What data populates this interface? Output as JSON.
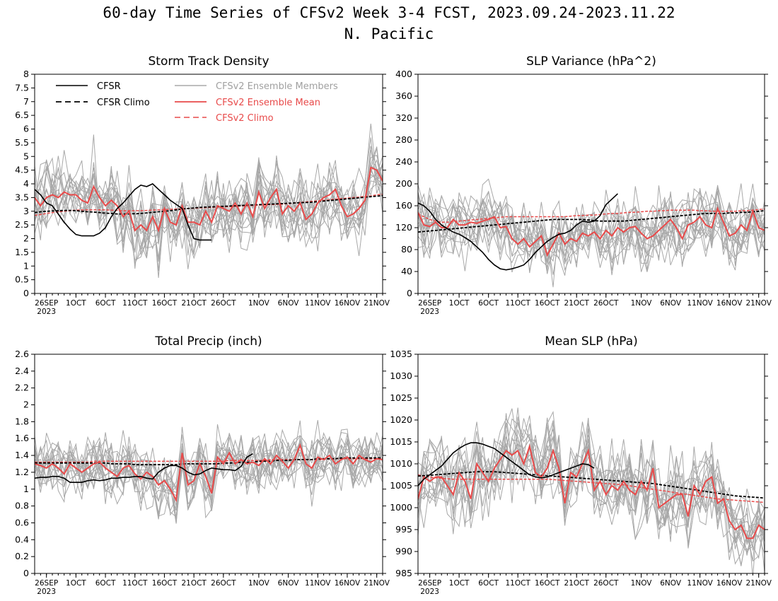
{
  "figure": {
    "title": "60-day Time Series of CFSv2 Week 3-4 FCST, 2023.09.24-2023.11.22",
    "region": "N. Pacific"
  },
  "legend_labels": {
    "cfsr": "CFSR",
    "cfsr_climo": "CFSR Climo",
    "members": "CFSv2 Ensemble Members",
    "ens_mean": "CFSv2 Ensemble Mean",
    "cfsv2_climo": "CFSv2 Climo"
  },
  "colors": {
    "cfsr": "#000000",
    "members": "#a8a8a8",
    "ens_mean": "#e84a4a",
    "cfsv2_climo": "#e84a4a",
    "legend_members_text": "#a0a0a0"
  },
  "x_axis": {
    "ticks": [
      {
        "day": 2,
        "label": "26SEP"
      },
      {
        "day": 7,
        "label": "1OCT"
      },
      {
        "day": 12,
        "label": "6OCT"
      },
      {
        "day": 17,
        "label": "11OCT"
      },
      {
        "day": 22,
        "label": "16OCT"
      },
      {
        "day": 27,
        "label": "21OCT"
      },
      {
        "day": 32,
        "label": "26OCT"
      },
      {
        "day": 38,
        "label": "1NOV"
      },
      {
        "day": 43,
        "label": "6NOV"
      },
      {
        "day": 48,
        "label": "11NOV"
      },
      {
        "day": 53,
        "label": "16NOV"
      },
      {
        "day": 58,
        "label": "21NOV"
      }
    ],
    "year_label": "2023",
    "start_date": "2023.09.24",
    "end_date": "2023.11.22"
  },
  "chart_data": [
    {
      "type": "line",
      "title": "Storm Track Density",
      "ylim": [
        0,
        8
      ],
      "yticks": [
        "0",
        "0.5",
        "1",
        "1.5",
        "2",
        "2.5",
        "3",
        "3.5",
        "4",
        "4.5",
        "5",
        "5.5",
        "6",
        "6.5",
        "7",
        "7.5",
        "8"
      ],
      "show_legend": true,
      "series": {
        "cfsr": [
          3.8,
          3.6,
          3.3,
          3.2,
          2.9,
          2.6,
          2.35,
          2.15,
          2.1,
          2.1,
          2.1,
          2.2,
          2.4,
          2.8,
          3.1,
          3.3,
          3.55,
          3.8,
          3.95,
          3.9,
          4.0,
          3.8,
          3.6,
          3.4,
          3.25,
          3.1,
          2.5,
          2.0,
          1.95,
          1.95,
          1.95
        ],
        "cfsr_climo": [
          2.95,
          2.98,
          3.0,
          3.01,
          3.02,
          3.03,
          3.03,
          3.02,
          3.0,
          2.98,
          2.97,
          2.95,
          2.93,
          2.92,
          2.9,
          2.9,
          2.9,
          2.91,
          2.92,
          2.94,
          2.96,
          2.98,
          3.0,
          3.02,
          3.05,
          3.08,
          3.1,
          3.12,
          3.14,
          3.15,
          3.16,
          3.17,
          3.18,
          3.19,
          3.2,
          3.21,
          3.22,
          3.23,
          3.24,
          3.25,
          3.26,
          3.27,
          3.28,
          3.29,
          3.3,
          3.31,
          3.32,
          3.33,
          3.35,
          3.37,
          3.39,
          3.41,
          3.43,
          3.45,
          3.47,
          3.49,
          3.51,
          3.53,
          3.55,
          3.57
        ],
        "ens_mean": [
          3.5,
          3.2,
          3.5,
          3.6,
          3.5,
          3.7,
          3.6,
          3.6,
          3.4,
          3.3,
          3.9,
          3.5,
          3.2,
          3.4,
          3.2,
          2.8,
          3.0,
          2.3,
          2.5,
          2.3,
          2.8,
          2.3,
          3.1,
          2.6,
          2.5,
          3.2,
          2.6,
          2.6,
          2.5,
          3.0,
          2.6,
          3.2,
          3.1,
          3.0,
          3.3,
          2.9,
          3.3,
          2.8,
          3.7,
          3.1,
          3.5,
          3.8,
          2.9,
          3.2,
          3.0,
          3.3,
          2.7,
          2.9,
          3.3,
          3.5,
          3.6,
          3.8,
          3.2,
          2.8,
          2.9,
          3.1,
          3.4,
          4.6,
          4.5,
          4.1
        ],
        "cfsv2_climo": [
          2.85,
          2.88,
          2.92,
          2.95,
          2.98,
          3.0,
          3.02,
          3.04,
          3.05,
          3.05,
          3.05,
          3.05,
          3.05,
          3.04,
          3.03,
          3.02,
          3.02,
          3.02,
          3.02,
          3.03,
          3.04,
          3.05,
          3.06,
          3.07,
          3.08,
          3.09,
          3.1,
          3.11,
          3.12,
          3.13,
          3.14,
          3.15,
          3.16,
          3.17,
          3.18,
          3.19,
          3.2,
          3.21,
          3.22,
          3.23,
          3.24,
          3.25,
          3.26,
          3.28,
          3.3,
          3.32,
          3.34,
          3.36,
          3.38,
          3.4,
          3.42,
          3.44,
          3.46,
          3.48,
          3.5,
          3.52,
          3.54,
          3.56,
          3.6,
          3.62
        ]
      },
      "member_spread": 0.65,
      "members_count": 16
    },
    {
      "type": "line",
      "title": "SLP Variance (hPa^2)",
      "ylim": [
        0,
        400
      ],
      "yticks": [
        "0",
        "40",
        "80",
        "120",
        "160",
        "200",
        "240",
        "280",
        "320",
        "360",
        "400"
      ],
      "show_legend": false,
      "series": {
        "cfsr": [
          165,
          160,
          150,
          135,
          125,
          118,
          112,
          108,
          102,
          95,
          85,
          75,
          62,
          52,
          45,
          43,
          45,
          48,
          52,
          62,
          75,
          85,
          95,
          102,
          108,
          110,
          115,
          125,
          132,
          130,
          132,
          142,
          162,
          172,
          182
        ],
        "cfsr_climo": [
          112,
          113,
          114,
          115,
          116,
          117,
          118,
          119,
          120,
          121,
          122,
          123,
          124,
          125,
          126,
          127,
          128,
          129,
          130,
          131,
          132,
          133,
          134,
          135,
          135,
          135,
          135,
          135,
          135,
          134,
          133,
          132,
          132,
          132,
          132,
          132,
          133,
          134,
          135,
          136,
          137,
          138,
          139,
          140,
          141,
          142,
          143,
          144,
          145,
          146,
          146,
          146,
          146,
          147,
          147,
          148,
          148,
          149,
          150,
          151
        ],
        "ens_mean": [
          148,
          125,
          122,
          130,
          120,
          120,
          135,
          125,
          125,
          130,
          128,
          132,
          135,
          140,
          120,
          122,
          100,
          90,
          100,
          85,
          95,
          105,
          70,
          90,
          110,
          90,
          100,
          95,
          110,
          105,
          112,
          100,
          115,
          105,
          120,
          112,
          120,
          122,
          110,
          100,
          105,
          115,
          125,
          135,
          120,
          100,
          125,
          130,
          140,
          125,
          120,
          155,
          130,
          105,
          110,
          125,
          115,
          150,
          120,
          115
        ],
        "cfsv2_climo": [
          145,
          140,
          135,
          132,
          130,
          130,
          131,
          132,
          133,
          134,
          135,
          136,
          137,
          138,
          139,
          140,
          140,
          140,
          140,
          140,
          140,
          140,
          140,
          140,
          140,
          140,
          141,
          142,
          142,
          143,
          143,
          144,
          145,
          146,
          146,
          147,
          148,
          148,
          149,
          150,
          150,
          151,
          151,
          152,
          152,
          152,
          152,
          152,
          151,
          151,
          150,
          150,
          150,
          150,
          150,
          151,
          151,
          152,
          153,
          154
        ],
        "cfsv2_climo_note": ""
      },
      "member_spread": 30,
      "members_count": 16
    },
    {
      "type": "line",
      "title": "Total Precip (inch)",
      "ylim": [
        0,
        2.6
      ],
      "yticks": [
        "0",
        "0.2",
        "0.4",
        "0.6",
        "0.8",
        "1",
        "1.2",
        "1.4",
        "1.6",
        "1.8",
        "2",
        "2.2",
        "2.4",
        "2.6"
      ],
      "show_legend": false,
      "series": {
        "cfsr": [
          1.13,
          1.14,
          1.14,
          1.15,
          1.15,
          1.13,
          1.08,
          1.08,
          1.08,
          1.1,
          1.11,
          1.1,
          1.11,
          1.13,
          1.13,
          1.14,
          1.14,
          1.15,
          1.15,
          1.13,
          1.12,
          1.2,
          1.25,
          1.28,
          1.28,
          1.25,
          1.2,
          1.17,
          1.18,
          1.22,
          1.25,
          1.24,
          1.23,
          1.23,
          1.22,
          1.27,
          1.38,
          1.42
        ],
        "cfsr_climo": [
          1.31,
          1.31,
          1.31,
          1.31,
          1.31,
          1.31,
          1.31,
          1.31,
          1.31,
          1.31,
          1.31,
          1.31,
          1.31,
          1.3,
          1.3,
          1.3,
          1.3,
          1.29,
          1.29,
          1.29,
          1.29,
          1.29,
          1.29,
          1.29,
          1.29,
          1.3,
          1.3,
          1.3,
          1.3,
          1.3,
          1.3,
          1.3,
          1.31,
          1.31,
          1.31,
          1.32,
          1.32,
          1.32,
          1.33,
          1.33,
          1.33,
          1.34,
          1.34,
          1.34,
          1.35,
          1.35,
          1.35,
          1.35,
          1.36,
          1.36,
          1.36,
          1.36,
          1.37,
          1.37,
          1.37,
          1.37,
          1.37,
          1.37,
          1.37,
          1.37
        ],
        "ens_mean": [
          1.3,
          1.28,
          1.25,
          1.3,
          1.25,
          1.18,
          1.3,
          1.25,
          1.2,
          1.25,
          1.3,
          1.32,
          1.25,
          1.2,
          1.15,
          1.25,
          1.28,
          1.18,
          1.12,
          1.2,
          1.15,
          1.05,
          1.1,
          1.0,
          0.87,
          1.43,
          1.05,
          1.1,
          1.3,
          1.15,
          0.95,
          1.38,
          1.3,
          1.43,
          1.3,
          1.35,
          1.3,
          1.32,
          1.28,
          1.36,
          1.3,
          1.4,
          1.33,
          1.25,
          1.35,
          1.52,
          1.3,
          1.25,
          1.38,
          1.35,
          1.4,
          1.3,
          1.35,
          1.38,
          1.3,
          1.4,
          1.35,
          1.32,
          1.36,
          1.35
        ],
        "cfsv2_climo": [
          1.32,
          1.32,
          1.32,
          1.32,
          1.32,
          1.32,
          1.32,
          1.32,
          1.32,
          1.32,
          1.33,
          1.33,
          1.33,
          1.33,
          1.33,
          1.33,
          1.33,
          1.33,
          1.33,
          1.33,
          1.33,
          1.33,
          1.33,
          1.33,
          1.33,
          1.33,
          1.33,
          1.33,
          1.33,
          1.33,
          1.33,
          1.33,
          1.33,
          1.34,
          1.34,
          1.34,
          1.34,
          1.34,
          1.34,
          1.34,
          1.35,
          1.35,
          1.35,
          1.35,
          1.35,
          1.35,
          1.35,
          1.35,
          1.35,
          1.35,
          1.36,
          1.36,
          1.36,
          1.36,
          1.36,
          1.36,
          1.36,
          1.36,
          1.36,
          1.36
        ]
      },
      "member_spread": 0.17,
      "members_count": 16
    },
    {
      "type": "line",
      "title": "Mean SLP (hPa)",
      "ylim": [
        985,
        1035
      ],
      "yticks": [
        "985",
        "990",
        "995",
        "1000",
        "1005",
        "1010",
        "1015",
        "1020",
        "1025",
        "1030",
        "1035"
      ],
      "show_legend": false,
      "series": {
        "cfsr": [
          1005,
          1006.5,
          1007.5,
          1008.5,
          1009.5,
          1011,
          1012.5,
          1013.5,
          1014.3,
          1014.8,
          1014.8,
          1014.5,
          1014,
          1013.5,
          1012.5,
          1011.5,
          1010.5,
          1009.5,
          1008.5,
          1007.5,
          1007,
          1006.8,
          1007,
          1007.5,
          1008,
          1008.5,
          1009,
          1009.5,
          1010,
          1009.8,
          1009
        ],
        "cfsr_climo": [
          1007.2,
          1007.3,
          1007.4,
          1007.5,
          1007.6,
          1007.7,
          1007.8,
          1007.9,
          1008,
          1008.1,
          1008.2,
          1008.2,
          1008.2,
          1008.2,
          1008.1,
          1008,
          1007.9,
          1007.8,
          1007.7,
          1007.6,
          1007.5,
          1007.4,
          1007.3,
          1007.2,
          1007.1,
          1007,
          1006.9,
          1006.8,
          1006.7,
          1006.6,
          1006.5,
          1006.4,
          1006.3,
          1006.2,
          1006.1,
          1006,
          1005.9,
          1005.8,
          1005.7,
          1005.6,
          1005.5,
          1005.3,
          1005.1,
          1004.9,
          1004.7,
          1004.5,
          1004.3,
          1004.1,
          1003.9,
          1003.7,
          1003.5,
          1003.3,
          1003.1,
          1002.9,
          1002.7,
          1002.6,
          1002.5,
          1002.4,
          1002.3,
          1002.2
        ],
        "ens_mean": [
          1002,
          1007,
          1006,
          1007,
          1007,
          1005,
          1003,
          1008,
          1006,
          1002,
          1010,
          1008,
          1006,
          1009,
          1011,
          1013,
          1012,
          1013,
          1010,
          1014,
          1008,
          1007,
          1009,
          1013,
          1009,
          1001,
          1008,
          1007,
          1010,
          1013,
          1004,
          1006,
          1003,
          1005,
          1004,
          1006,
          1004,
          1003,
          1006,
          1004,
          1009,
          1000,
          1001,
          1002,
          1003,
          1003,
          998,
          1005,
          1003,
          1006,
          1007,
          1001,
          1002,
          997,
          995,
          996,
          993,
          993,
          996,
          995
        ],
        "cfsv2_climo": [
          1007.5,
          1007.2,
          1007,
          1006.8,
          1006.7,
          1006.6,
          1006.5,
          1006.5,
          1006.5,
          1006.5,
          1006.5,
          1006.5,
          1006.5,
          1006.5,
          1006.5,
          1006.5,
          1006.5,
          1006.5,
          1006.5,
          1006.5,
          1006.5,
          1006.5,
          1006.5,
          1006.4,
          1006.3,
          1006.2,
          1006.1,
          1006,
          1005.9,
          1005.8,
          1005.7,
          1005.6,
          1005.5,
          1005.4,
          1005.3,
          1005.2,
          1005,
          1004.8,
          1004.6,
          1004.4,
          1004.2,
          1004,
          1003.8,
          1003.6,
          1003.4,
          1003.2,
          1003,
          1002.8,
          1002.6,
          1002.4,
          1002.2,
          1002,
          1001.9,
          1001.8,
          1001.7,
          1001.6,
          1001.5,
          1001.4,
          1001.3,
          1001.2
        ]
      },
      "member_spread": 4.5,
      "members_count": 16
    }
  ]
}
